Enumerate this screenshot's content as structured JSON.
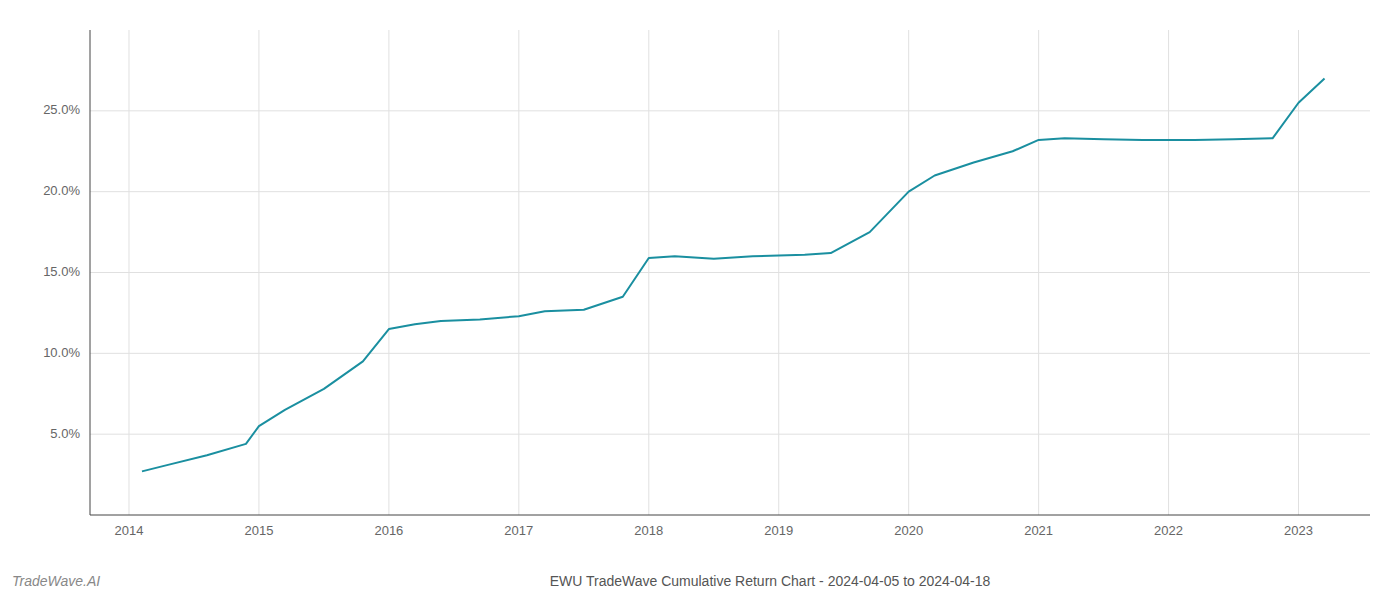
{
  "chart_data": {
    "type": "line",
    "title": "EWU TradeWave Cumulative Return Chart - 2024-04-05 to 2024-04-18",
    "annotations": [
      "TradeWave.AI"
    ],
    "x": [
      2014.1,
      2014.3,
      2014.6,
      2014.9,
      2015.0,
      2015.2,
      2015.5,
      2015.8,
      2016.0,
      2016.2,
      2016.4,
      2016.7,
      2017.0,
      2017.2,
      2017.5,
      2017.8,
      2018.0,
      2018.2,
      2018.5,
      2018.8,
      2019.0,
      2019.2,
      2019.4,
      2019.7,
      2020.0,
      2020.2,
      2020.5,
      2020.8,
      2021.0,
      2021.2,
      2021.5,
      2021.8,
      2022.0,
      2022.2,
      2022.5,
      2022.8,
      2023.0,
      2023.2
    ],
    "values": [
      2.7,
      3.1,
      3.7,
      4.4,
      5.5,
      6.5,
      7.8,
      9.5,
      11.5,
      11.8,
      12.0,
      12.1,
      12.3,
      12.6,
      12.7,
      13.5,
      15.9,
      16.0,
      15.85,
      16.0,
      16.05,
      16.1,
      16.2,
      17.5,
      20.0,
      21.0,
      21.8,
      22.5,
      23.2,
      23.3,
      23.25,
      23.2,
      23.2,
      23.2,
      23.25,
      23.3,
      25.5,
      27.0
    ],
    "color": "#1a8fa0",
    "xlim": [
      2013.7,
      2023.55
    ],
    "ylim": [
      0,
      30
    ],
    "xticks": [
      2014,
      2015,
      2016,
      2017,
      2018,
      2019,
      2020,
      2021,
      2022,
      2023
    ],
    "yticks": [
      {
        "value": 5,
        "label": "5.0%"
      },
      {
        "value": 10,
        "label": "10.0%"
      },
      {
        "value": 15,
        "label": "15.0%"
      },
      {
        "value": 20,
        "label": "20.0%"
      },
      {
        "value": 25,
        "label": "25.0%"
      }
    ],
    "grid": true
  }
}
